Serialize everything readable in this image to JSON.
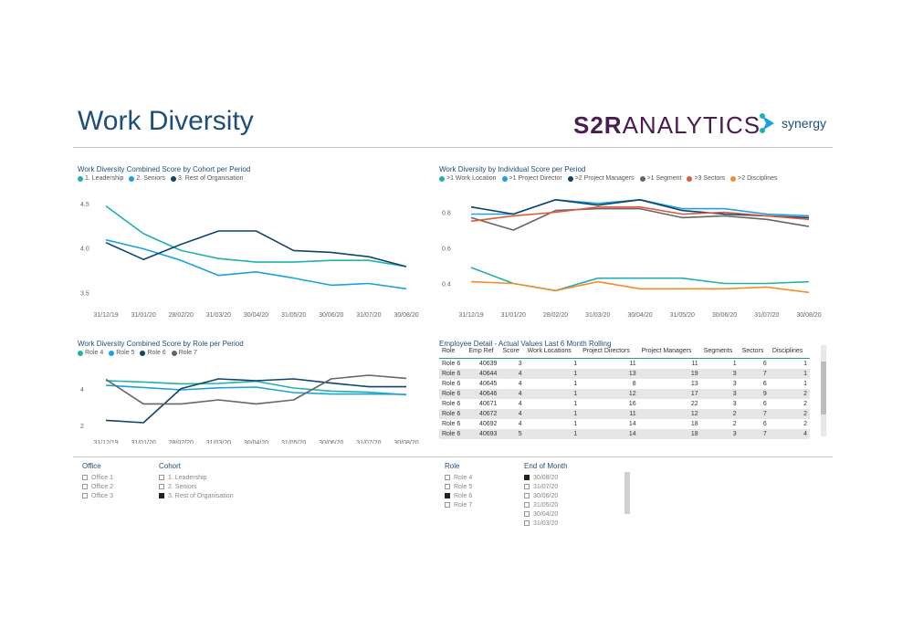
{
  "page_title": "Work Diversity",
  "logo": {
    "s2r_bold": "S2R",
    "s2r_light": "ANALYTICS",
    "synergy": "synergy"
  },
  "colors": {
    "teal": "#20b2aa",
    "sky": "#1ba1e2",
    "navy": "#12436d",
    "grey": "#666666",
    "orange_red": "#e05a3a",
    "orange": "#f28e2b",
    "title": "#1f4e79"
  },
  "chart_data": [
    {
      "type": "line",
      "title": "Work Diversity Combined Score by Cohort per Period",
      "categories": [
        "31/12/19",
        "31/01/20",
        "28/02/20",
        "31/03/20",
        "30/04/20",
        "31/05/20",
        "30/06/20",
        "31/07/20",
        "30/08/20"
      ],
      "ylim": [
        3.4,
        4.6
      ],
      "yticks": [
        "3.5",
        "4.0",
        "4.5"
      ],
      "series": [
        {
          "name": "1. Leadership",
          "color": "#20b2aa",
          "values": [
            4.47,
            4.16,
            3.97,
            3.88,
            3.84,
            3.84,
            3.86,
            3.86,
            3.79
          ]
        },
        {
          "name": "2. Seniors",
          "color": "#1ba1e2",
          "values": [
            4.09,
            3.99,
            3.86,
            3.69,
            3.73,
            3.66,
            3.58,
            3.6,
            3.54
          ]
        },
        {
          "name": "3. Rest of Organisation",
          "color": "#12436d",
          "values": [
            4.06,
            3.87,
            4.04,
            4.19,
            4.19,
            3.97,
            3.95,
            3.9,
            3.79
          ]
        }
      ]
    },
    {
      "type": "line",
      "title": "Work Diversity by Individual Score per Period",
      "categories": [
        "31/12/19",
        "31/01/20",
        "28/02/20",
        "31/03/20",
        "30/04/20",
        "31/05/20",
        "30/06/20",
        "31/07/20",
        "30/08/20"
      ],
      "ylim": [
        0.3,
        0.9
      ],
      "yticks": [
        "0.4",
        "0.6",
        "0.8"
      ],
      "series": [
        {
          "name": ">1 Work Location",
          "color": "#20b2aa",
          "values": [
            0.49,
            0.4,
            0.36,
            0.43,
            0.43,
            0.43,
            0.4,
            0.4,
            0.41
          ]
        },
        {
          "name": ">1 Project Director",
          "color": "#1ba1e2",
          "values": [
            0.79,
            0.79,
            0.87,
            0.85,
            0.87,
            0.82,
            0.82,
            0.79,
            0.78
          ]
        },
        {
          "name": ">2 Project Managers",
          "color": "#12436d",
          "values": [
            0.83,
            0.79,
            0.87,
            0.84,
            0.87,
            0.81,
            0.79,
            0.78,
            0.77
          ]
        },
        {
          "name": ">1 Segment",
          "color": "#666666",
          "values": [
            0.77,
            0.7,
            0.81,
            0.82,
            0.82,
            0.77,
            0.78,
            0.76,
            0.72
          ]
        },
        {
          "name": ">3 Sectors",
          "color": "#e05a3a",
          "values": [
            0.75,
            0.78,
            0.8,
            0.83,
            0.83,
            0.79,
            0.8,
            0.78,
            0.76
          ]
        },
        {
          "name": ">2 Disciplines",
          "color": "#f28e2b",
          "values": [
            0.41,
            0.4,
            0.36,
            0.41,
            0.37,
            0.37,
            0.37,
            0.38,
            0.35
          ]
        }
      ]
    },
    {
      "type": "line",
      "title": "Work Diversity Combined Score by Role per Period",
      "categories": [
        "31/12/19",
        "31/01/20",
        "28/02/20",
        "31/03/20",
        "30/04/20",
        "31/05/20",
        "30/06/20",
        "31/07/20",
        "30/08/20"
      ],
      "ylim": [
        1.8,
        5.2
      ],
      "yticks": [
        "2",
        "4"
      ],
      "series": [
        {
          "name": "Role 4",
          "color": "#20b2aa",
          "values": [
            4.45,
            4.38,
            4.28,
            4.3,
            4.42,
            4.05,
            3.88,
            3.82,
            3.68
          ]
        },
        {
          "name": "Role 5",
          "color": "#1ba1e2",
          "values": [
            4.2,
            4.08,
            3.95,
            4.06,
            4.1,
            3.8,
            3.72,
            3.72,
            3.7
          ]
        },
        {
          "name": "Role 6",
          "color": "#12436d",
          "values": [
            2.28,
            2.15,
            4.02,
            4.55,
            4.45,
            4.55,
            4.32,
            4.12,
            4.12
          ]
        },
        {
          "name": "Role 7",
          "color": "#666666",
          "values": [
            4.52,
            3.18,
            3.18,
            3.4,
            3.18,
            3.4,
            4.55,
            4.75,
            4.58
          ]
        }
      ]
    }
  ],
  "table": {
    "title": "Employee Detail - Actual Values Last 6 Month Rolling",
    "columns": [
      "Role",
      "Emp Ref",
      "Score",
      "Work Locations",
      "Project Directors",
      "Project Managers",
      "Segments",
      "Sectors",
      "Disciplines"
    ],
    "rows": [
      [
        "Role 6",
        "40639",
        "3",
        "1",
        "11",
        "11",
        "1",
        "6",
        "1"
      ],
      [
        "Role 6",
        "40644",
        "4",
        "1",
        "13",
        "19",
        "3",
        "7",
        "1"
      ],
      [
        "Role 6",
        "40645",
        "4",
        "1",
        "8",
        "13",
        "3",
        "6",
        "1"
      ],
      [
        "Role 6",
        "40646",
        "4",
        "1",
        "12",
        "17",
        "3",
        "9",
        "2"
      ],
      [
        "Role 6",
        "40671",
        "4",
        "1",
        "16",
        "22",
        "3",
        "6",
        "2"
      ],
      [
        "Role 6",
        "40672",
        "4",
        "1",
        "11",
        "12",
        "2",
        "7",
        "2"
      ],
      [
        "Role 6",
        "40692",
        "4",
        "1",
        "14",
        "18",
        "2",
        "6",
        "2"
      ],
      [
        "Role 6",
        "40693",
        "5",
        "1",
        "14",
        "18",
        "3",
        "7",
        "4"
      ]
    ]
  },
  "slicers": {
    "office": {
      "title": "Office",
      "items": [
        {
          "label": "Office 1",
          "checked": false
        },
        {
          "label": "Office 2",
          "checked": false
        },
        {
          "label": "Office 3",
          "checked": false
        }
      ]
    },
    "cohort": {
      "title": "Cohort",
      "items": [
        {
          "label": "1. Leadership",
          "checked": false
        },
        {
          "label": "2. Seniors",
          "checked": false
        },
        {
          "label": "3. Rest of Organisation",
          "checked": true
        }
      ]
    },
    "role": {
      "title": "Role",
      "items": [
        {
          "label": "Role 4",
          "checked": false
        },
        {
          "label": "Role 5",
          "checked": false
        },
        {
          "label": "Role 6",
          "checked": true
        },
        {
          "label": "Role 7",
          "checked": false
        }
      ]
    },
    "end_of_month": {
      "title": "End of Month",
      "items": [
        {
          "label": "30/08/20",
          "checked": true
        },
        {
          "label": "31/07/20",
          "checked": false
        },
        {
          "label": "30/06/20",
          "checked": false
        },
        {
          "label": "31/05/20",
          "checked": false
        },
        {
          "label": "30/04/20",
          "checked": false
        },
        {
          "label": "31/03/20",
          "checked": false
        }
      ]
    }
  }
}
